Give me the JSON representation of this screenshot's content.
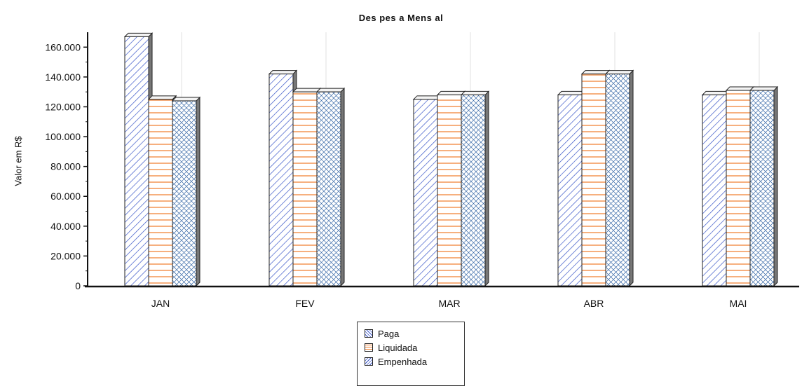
{
  "chart_data": {
    "type": "bar",
    "title": "Des pes a Mens al",
    "ylabel": "Valor em R$",
    "xlabel": "",
    "categories": [
      "JAN",
      "FEV",
      "MAR",
      "ABR",
      "MAI"
    ],
    "series": [
      {
        "name": "Paga",
        "values": [
          167000,
          142000,
          125000,
          128000,
          128000
        ]
      },
      {
        "name": "Liquidada",
        "values": [
          125000,
          130000,
          128000,
          142000,
          131000
        ]
      },
      {
        "name": "Empenhada",
        "values": [
          124000,
          130000,
          128000,
          142000,
          131000
        ]
      }
    ],
    "ylim": [
      0,
      170000
    ],
    "yticks": [
      "0",
      "20.000",
      "40.000",
      "60.000",
      "80.000",
      "100.000",
      "120.000",
      "140.000",
      "160.000"
    ],
    "legend_position": "bottom-center",
    "grid": false
  },
  "colors": {
    "paga": "#3956c8",
    "liquidada": "#f07a28",
    "empenhada": "#3956c8",
    "axis": "#111111"
  }
}
